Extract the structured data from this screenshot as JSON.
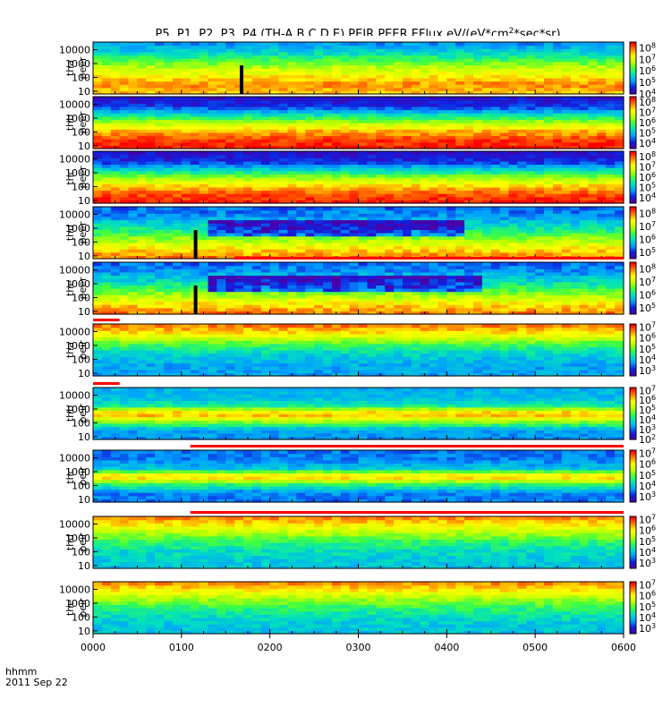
{
  "chart_data": {
    "type": "heatmap",
    "title_prefix": "P5, P1, P2, P3, P4 (TH-A,B,C,D,E) PEIR,PEER EFlux eV/(eV*cm",
    "title_sup": "2",
    "title_suffix": "*sec*sr)",
    "x_axis": {
      "label": "hhmm",
      "date": "2011 Sep 22",
      "range": [
        "0000",
        "0600"
      ],
      "ticks": [
        "0000",
        "0100",
        "0200",
        "0300",
        "0400",
        "0500",
        "0600"
      ]
    },
    "y_scale": "log",
    "y_ticks": [
      "10",
      "100",
      "1000",
      "10000"
    ],
    "colormap": [
      "#4a00a8",
      "#1020e0",
      "#00a0ff",
      "#00e0c0",
      "#40ff40",
      "#c0ff00",
      "#ffff00",
      "#ff8000",
      "#ff0000"
    ],
    "panels": [
      {
        "probe": "tha",
        "species": "peer",
        "cbar_ticks": [
          "10^4",
          "10^5",
          "10^6",
          "10^7",
          "10^8"
        ],
        "cbar_range": [
          4,
          8.5
        ],
        "profile": [
          7.6,
          7.9,
          7.4,
          6.9,
          6.2,
          5.6,
          5.1
        ],
        "gap_hours": [
          1.68
        ],
        "band_hours": [],
        "bar": []
      },
      {
        "probe": "thb",
        "species": "peer",
        "cbar_ticks": [
          "10^4",
          "10^5",
          "10^6",
          "10^7",
          "10^8"
        ],
        "cbar_range": [
          3.5,
          8.5
        ],
        "profile": [
          8.4,
          8.2,
          7.6,
          6.6,
          5.4,
          4.2,
          3.9
        ],
        "gap_hours": [],
        "band_hours": [],
        "bar": []
      },
      {
        "probe": "thc",
        "species": "peer",
        "cbar_ticks": [
          "10^4",
          "10^5",
          "10^6",
          "10^7",
          "10^8"
        ],
        "cbar_range": [
          3.5,
          8.5
        ],
        "profile": [
          8.4,
          8.1,
          7.4,
          6.4,
          5.2,
          4.1,
          3.9
        ],
        "gap_hours": [],
        "band_hours": [],
        "bar": []
      },
      {
        "probe": "thd",
        "species": "peer",
        "cbar_ticks": [
          "10^5",
          "10^6",
          "10^7",
          "10^8"
        ],
        "cbar_range": [
          4.5,
          8.5
        ],
        "profile": [
          8.0,
          7.6,
          7.0,
          6.4,
          5.9,
          5.5,
          5.3
        ],
        "gap_hours": [
          1.16
        ],
        "band_hours": [
          [
            1.3,
            4.2
          ]
        ],
        "bar": []
      },
      {
        "probe": "the",
        "species": "peer",
        "cbar_ticks": [
          "10^5",
          "10^6",
          "10^7",
          "10^8"
        ],
        "cbar_range": [
          4.5,
          8.5
        ],
        "profile": [
          8.0,
          7.6,
          7.0,
          6.4,
          5.9,
          5.5,
          5.3
        ],
        "gap_hours": [
          1.16
        ],
        "band_hours": [
          [
            1.3,
            4.4
          ]
        ],
        "bar": [
          [
            1.6,
            6.0
          ]
        ]
      },
      {
        "probe": "tha",
        "species": "peir",
        "cbar_ticks": [
          "10^3",
          "10^4",
          "10^5",
          "10^6",
          "10^7"
        ],
        "cbar_range": [
          2.5,
          7.3
        ],
        "profile": [
          3.8,
          3.8,
          4.0,
          4.4,
          5.1,
          6.1,
          6.7
        ],
        "gap_hours": [],
        "band_hours": [],
        "bar": [
          [
            0.0,
            0.3
          ]
        ]
      },
      {
        "probe": "thb",
        "species": "peir",
        "cbar_ticks": [
          "10^2",
          "10^3",
          "10^4",
          "10^5",
          "10^6",
          "10^7"
        ],
        "cbar_range": [
          2.0,
          7.3
        ],
        "profile": [
          3.3,
          3.4,
          5.0,
          6.6,
          4.2,
          3.6,
          3.5
        ],
        "gap_hours": [],
        "band_hours": [],
        "bar": [
          [
            0.0,
            0.3
          ]
        ]
      },
      {
        "probe": "thc",
        "species": "peir",
        "cbar_ticks": [
          "10^3",
          "10^4",
          "10^5",
          "10^6",
          "10^7"
        ],
        "cbar_range": [
          2.5,
          7.3
        ],
        "profile": [
          3.5,
          3.6,
          4.7,
          6.5,
          4.0,
          3.6,
          3.5
        ],
        "gap_hours": [],
        "band_hours": [],
        "bar": [
          [
            1.1,
            6.0
          ]
        ]
      },
      {
        "probe": "thd",
        "species": "peir",
        "cbar_ticks": [
          "10^3",
          "10^4",
          "10^5",
          "10^6",
          "10^7"
        ],
        "cbar_range": [
          2.5,
          7.3
        ],
        "profile": [
          4.0,
          4.1,
          4.3,
          4.7,
          5.3,
          6.0,
          6.6
        ],
        "gap_hours": [],
        "band_hours": [],
        "bar": [
          [
            1.1,
            6.0
          ]
        ]
      },
      {
        "probe": "the",
        "species": "peir",
        "cbar_ticks": [
          "10^3",
          "10^4",
          "10^5",
          "10^6",
          "10^7"
        ],
        "cbar_range": [
          2.5,
          7.3
        ],
        "profile": [
          4.0,
          4.1,
          4.3,
          4.7,
          5.3,
          6.0,
          6.6
        ],
        "gap_hours": [],
        "band_hours": [],
        "bar": []
      }
    ]
  }
}
